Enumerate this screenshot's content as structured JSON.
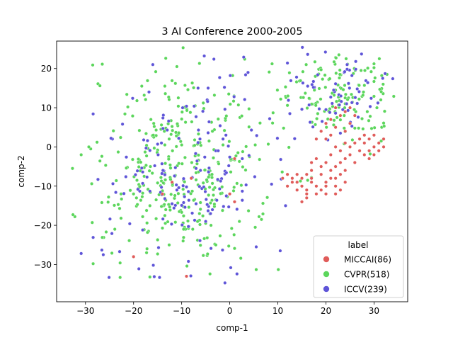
{
  "chart_data": {
    "type": "scatter",
    "title": "3 AI Conference 2000-2005",
    "xlabel": "comp-1",
    "ylabel": "comp-2",
    "xlim": [
      -36,
      37
    ],
    "ylim": [
      -39.5,
      27
    ],
    "xticks": [
      -30,
      -20,
      -10,
      0,
      10,
      20,
      30
    ],
    "yticks": [
      -30,
      -20,
      -10,
      0,
      10,
      20
    ],
    "xtick_labels": [
      "−30",
      "−20",
      "−10",
      "0",
      "10",
      "20",
      "30"
    ],
    "ytick_labels": [
      "−30",
      "−20",
      "−10",
      "0",
      "10",
      "20"
    ],
    "grid": false,
    "legend": {
      "title": "label",
      "placement": "lower-right"
    },
    "series": [
      {
        "name": "MICCAI(86)",
        "color": "#e05c5a",
        "points": [
          [
            -8,
            -8
          ],
          [
            -12,
            -9
          ],
          [
            -14,
            -12
          ],
          [
            1,
            -3
          ],
          [
            0,
            -12
          ],
          [
            1,
            -14
          ],
          [
            -20,
            -28
          ],
          [
            -9,
            -33
          ],
          [
            12,
            -7
          ],
          [
            13,
            -8
          ],
          [
            14,
            -9
          ],
          [
            15,
            -10
          ],
          [
            16,
            -11
          ],
          [
            17,
            -9
          ],
          [
            18,
            -10
          ],
          [
            19,
            -11
          ],
          [
            20,
            -9
          ],
          [
            21,
            -8
          ],
          [
            22,
            -10
          ],
          [
            23,
            -11
          ],
          [
            24,
            -9
          ],
          [
            14,
            -11
          ],
          [
            16,
            -13
          ],
          [
            18,
            -12
          ],
          [
            20,
            -12
          ],
          [
            22,
            -12
          ],
          [
            23,
            -7
          ],
          [
            21,
            -6
          ],
          [
            19,
            -5
          ],
          [
            17,
            -4
          ],
          [
            18,
            -3
          ],
          [
            20,
            -4
          ],
          [
            22,
            -5
          ],
          [
            24,
            -3
          ],
          [
            25,
            -2
          ],
          [
            26,
            -4
          ],
          [
            17,
            -8
          ],
          [
            19,
            -7
          ],
          [
            21,
            -2
          ],
          [
            22,
            0
          ],
          [
            23,
            -1
          ],
          [
            24,
            1
          ],
          [
            20,
            2
          ],
          [
            21,
            3
          ],
          [
            22,
            5
          ],
          [
            24,
            4
          ],
          [
            25,
            6
          ],
          [
            23,
            8
          ],
          [
            24,
            9
          ],
          [
            25,
            10
          ],
          [
            26,
            8
          ],
          [
            18,
            2
          ],
          [
            19,
            4
          ],
          [
            20,
            6
          ],
          [
            21,
            7
          ],
          [
            22,
            10
          ],
          [
            27,
            2
          ],
          [
            28,
            1
          ],
          [
            29,
            2
          ],
          [
            30,
            0
          ],
          [
            31,
            1
          ],
          [
            32,
            2
          ],
          [
            30,
            -2
          ],
          [
            29,
            -1
          ],
          [
            28,
            3
          ],
          [
            31,
            -1
          ],
          [
            29,
            -3
          ],
          [
            32,
            0
          ],
          [
            27,
            -1
          ],
          [
            26,
            1
          ],
          [
            30,
            3
          ],
          [
            28,
            -2
          ],
          [
            25,
            0
          ],
          [
            24,
            -6
          ],
          [
            23,
            -4
          ],
          [
            22,
            -8
          ],
          [
            15,
            -14
          ],
          [
            16,
            -12
          ],
          [
            20,
            -10
          ],
          [
            17,
            -6
          ],
          [
            15,
            -8
          ],
          [
            13,
            -9
          ],
          [
            12,
            -10
          ],
          [
            11,
            -8
          ],
          [
            14,
            -7
          ],
          [
            16,
            -7
          ]
        ]
      },
      {
        "name": "CVPR(518)",
        "color": "#5cd65c",
        "points": []
      },
      {
        "name": "ICCV(239)",
        "color": "#5f55d8",
        "points": []
      }
    ]
  }
}
